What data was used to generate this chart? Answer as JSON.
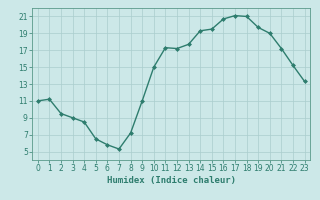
{
  "x": [
    0,
    1,
    2,
    3,
    4,
    5,
    6,
    7,
    8,
    9,
    10,
    11,
    12,
    13,
    14,
    15,
    16,
    17,
    18,
    19,
    20,
    21,
    22,
    23
  ],
  "y": [
    11,
    11.2,
    9.5,
    9,
    8.5,
    6.5,
    5.8,
    5.3,
    7.2,
    11,
    15,
    17.3,
    17.2,
    17.7,
    19.3,
    19.5,
    20.7,
    21.1,
    21,
    19.7,
    19,
    17.2,
    15.2,
    13.3
  ],
  "line_color": "#2e7d6e",
  "marker": "D",
  "marker_size": 2,
  "bg_color": "#cce8e8",
  "grid_color": "#aacece",
  "xlabel": "Humidex (Indice chaleur)",
  "xlim": [
    -0.5,
    23.5
  ],
  "ylim": [
    4,
    22
  ],
  "yticks": [
    5,
    7,
    9,
    11,
    13,
    15,
    17,
    19,
    21
  ],
  "xticks": [
    0,
    1,
    2,
    3,
    4,
    5,
    6,
    7,
    8,
    9,
    10,
    11,
    12,
    13,
    14,
    15,
    16,
    17,
    18,
    19,
    20,
    21,
    22,
    23
  ],
  "tick_label_fontsize": 5.5,
  "xlabel_fontsize": 6.5,
  "line_width": 1.0
}
